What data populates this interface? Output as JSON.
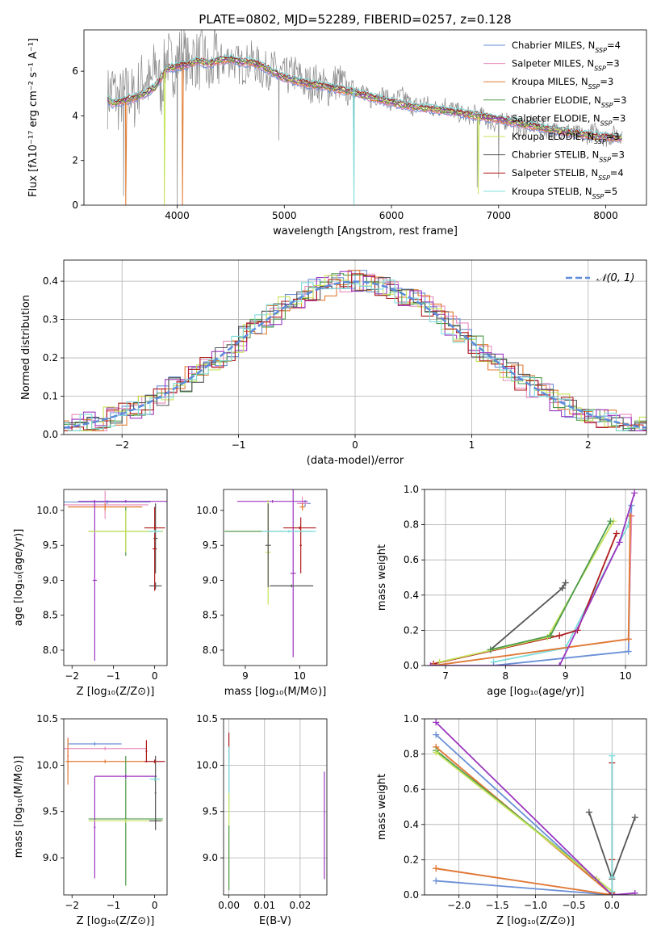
{
  "chart_data": [
    {
      "id": "spectrum",
      "type": "line",
      "title": "PLATE=0802, MJD=52289, FIBERID=0257, z=0.128",
      "xlabel": "wavelength [Angstrom, rest frame]",
      "ylabel": "Flux [fλ10⁻¹⁷ erg cm⁻² s⁻¹ A⁻¹]",
      "xlim": [
        3130,
        8380
      ],
      "ylim": [
        0,
        7.85
      ],
      "xticks": [
        4000,
        5000,
        6000,
        7000,
        8000
      ],
      "yticks": [
        0,
        2,
        4,
        6
      ],
      "grid": false,
      "legend_placement": "upper-right",
      "data_series": {
        "name": "data",
        "color": "#888888",
        "x": [
          3350,
          3400,
          3450,
          3500,
          3550,
          3600,
          3650,
          3700,
          3750,
          3800,
          3850,
          3900,
          3950,
          4000,
          4050,
          4100,
          4150,
          4200,
          4250,
          4300,
          4350,
          4400,
          4500,
          4600,
          4700,
          4800,
          4900,
          5000,
          5100,
          5200,
          5300,
          5400,
          5500,
          5600,
          5700,
          5800,
          5900,
          6000,
          6100,
          6200,
          6300,
          6400,
          6500,
          6600,
          6700,
          6800,
          6900,
          7000,
          7100,
          7200,
          7300,
          7400,
          7500,
          7600,
          7700,
          7800,
          7900,
          8000,
          8100
        ],
        "y": [
          4.8,
          5.3,
          4.6,
          4.9,
          5.1,
          4.7,
          5.4,
          5.8,
          5.2,
          6.4,
          5.1,
          6.8,
          6.1,
          6.5,
          6.9,
          6.2,
          6.7,
          6.4,
          6.8,
          5.6,
          6.6,
          6.4,
          6.6,
          6.2,
          6.5,
          6.0,
          6.1,
          5.7,
          5.9,
          5.4,
          5.5,
          5.2,
          5.6,
          5.1,
          5.3,
          4.7,
          5.0,
          4.6,
          4.9,
          4.4,
          4.6,
          4.3,
          4.5,
          4.2,
          4.0,
          4.1,
          3.8,
          3.6,
          3.9,
          3.4,
          3.6,
          3.5,
          3.3,
          3.4,
          3.2,
          3.1,
          3.3,
          3.0,
          3.2
        ]
      },
      "model_series": [
        {
          "name": "Chabrier MILES, N$_{SSP}$=4",
          "color": "#6a8fd6"
        },
        {
          "name": "Salpeter MILES, N$_{SSP}$=3",
          "color": "#e88cbd"
        },
        {
          "name": "Kroupa MILES, N$_{SSP}$=3",
          "color": "#e07b32"
        },
        {
          "name": "Chabrier ELODIE, N$_{SSP}$=3",
          "color": "#4d9a4d"
        },
        {
          "name": "Salpeter ELODIE, N$_{SSP}$=3",
          "color": "#9b36c0"
        },
        {
          "name": "Kroupa ELODIE, N$_{SSP}$=3",
          "color": "#c6e35a"
        },
        {
          "name": "Chabrier STELIB, N$_{SSP}$=3",
          "color": "#555555"
        },
        {
          "name": "Salpeter STELIB, N$_{SSP}$=4",
          "color": "#b01c1c"
        },
        {
          "name": "Kroupa STELIB, N$_{SSP}$=5",
          "color": "#7fdcdc"
        }
      ],
      "model_x": [
        3350,
        3400,
        3450,
        3500,
        3600,
        3700,
        3800,
        3900,
        4000,
        4100,
        4200,
        4300,
        4400,
        4500,
        4600,
        4700,
        4800,
        4900,
        5000,
        5200,
        5400,
        5600,
        5800,
        6000,
        6200,
        6400,
        6600,
        6800,
        7000,
        7200,
        7400,
        7600,
        7800,
        8000,
        8100
      ],
      "model_y": [
        4.75,
        4.55,
        4.6,
        4.7,
        4.8,
        5.0,
        5.3,
        6.1,
        6.2,
        6.3,
        6.45,
        6.35,
        6.5,
        6.55,
        6.4,
        6.4,
        6.2,
        5.95,
        5.7,
        5.45,
        5.3,
        5.1,
        4.85,
        4.6,
        4.4,
        4.3,
        4.15,
        4.0,
        3.85,
        3.65,
        3.45,
        3.3,
        3.15,
        3.05,
        3.0
      ]
    },
    {
      "id": "residuals",
      "type": "step",
      "xlabel": "(data-model)/error",
      "ylabel": "Normed distribution",
      "xlim": [
        -2.5,
        2.5
      ],
      "ylim": [
        0,
        0.455
      ],
      "xticks": [
        -2,
        -1,
        0,
        1,
        2
      ],
      "yticks": [
        0.0,
        0.1,
        0.2,
        0.3,
        0.4
      ],
      "grid": true,
      "legend_placement": "upper-right",
      "reference": {
        "name": "𝒩(0, 1)",
        "color": "#5b8bd9",
        "mean": 0,
        "sigma": 1
      },
      "bin_width": 0.1
    },
    {
      "id": "age-vs-Z",
      "type": "errorbar",
      "xlabel": "Z [log₁₀(Z/Z⊙)]",
      "ylabel": "age  [log₁₀(age/yr)]",
      "xlim": [
        -2.2,
        0.3
      ],
      "ylim": [
        7.78,
        10.3
      ],
      "xticks": [
        -2,
        -1,
        0
      ],
      "yticks": [
        8.0,
        8.5,
        9.0,
        9.5,
        10.0
      ],
      "grid": false,
      "points": [
        {
          "color": "#6a8fd6",
          "x": -1.15,
          "xerr": 1.05,
          "y": 10.12,
          "yerr": 0.03
        },
        {
          "color": "#e88cbd",
          "x": -1.2,
          "xerr": 1.05,
          "y": 10.08,
          "yerr": 0.2
        },
        {
          "color": "#e07b32",
          "x": -1.2,
          "xerr": 0.9,
          "y": 10.05,
          "yerr": 0.05
        },
        {
          "color": "#4d9a4d",
          "x": -0.7,
          "xerr": 0.9,
          "y": 9.7,
          "yerr": 0.35
        },
        {
          "color": "#9b36c0",
          "x": -0.7,
          "xerr": 1.15,
          "y": 10.13,
          "yerr": 0.02
        },
        {
          "color": "#9b36c0",
          "x": -1.45,
          "xerr": 0.05,
          "y": 9.0,
          "yerr": 1.15
        },
        {
          "color": "#c6e35a",
          "x": -0.7,
          "xerr": 0.9,
          "y": 9.7,
          "yerr": 0.3
        },
        {
          "color": "#555555",
          "x": 0.02,
          "xerr": 0.15,
          "y": 8.92,
          "yerr": 0.05
        },
        {
          "color": "#555555",
          "x": 0.02,
          "xerr": 0.05,
          "y": 9.6,
          "yerr": 0.5
        },
        {
          "color": "#b01c1c",
          "x": 0.0,
          "xerr": 0.25,
          "y": 9.75,
          "yerr": 0.05
        },
        {
          "color": "#b01c1c",
          "x": 0.0,
          "xerr": 0.05,
          "y": 9.45,
          "yerr": 0.6
        },
        {
          "color": "#7fdcdc",
          "x": 0.0,
          "xerr": 0.15,
          "y": 9.7,
          "yerr": 0.02
        }
      ]
    },
    {
      "id": "age-vs-mass",
      "type": "errorbar",
      "xlabel": "mass [log₁₀(M/M⊙)]",
      "ylabel": "",
      "xlim": [
        8.6,
        10.5
      ],
      "ylim": [
        7.78,
        10.3
      ],
      "xticks": [
        9,
        10
      ],
      "yticks": [
        8.0,
        8.5,
        9.0,
        9.5,
        10.0
      ],
      "grid": false,
      "points": [
        {
          "color": "#6a8fd6",
          "x": 10.1,
          "xerr": 0.1,
          "y": 10.1,
          "yerr": 0.05
        },
        {
          "color": "#e88cbd",
          "x": 10.05,
          "xerr": 0.1,
          "y": 10.1,
          "yerr": 0.1
        },
        {
          "color": "#e07b32",
          "x": 10.05,
          "xerr": 0.05,
          "y": 10.05,
          "yerr": 0.05
        },
        {
          "color": "#4d9a4d",
          "x": 9.42,
          "xerr": 0.8,
          "y": 9.7,
          "yerr": 0.4
        },
        {
          "color": "#9b36c0",
          "x": 9.88,
          "xerr": 0.05,
          "y": 9.1,
          "yerr": 1.2
        },
        {
          "color": "#9b36c0",
          "x": 9.5,
          "xerr": 0.65,
          "y": 10.13,
          "yerr": 0.02
        },
        {
          "color": "#c6e35a",
          "x": 9.42,
          "xerr": 0.05,
          "y": 9.4,
          "yerr": 0.75
        },
        {
          "color": "#555555",
          "x": 9.85,
          "xerr": 0.4,
          "y": 8.92,
          "yerr": 0.02
        },
        {
          "color": "#555555",
          "x": 9.42,
          "xerr": 0.05,
          "y": 9.5,
          "yerr": 0.6
        },
        {
          "color": "#b01c1c",
          "x": 10.0,
          "xerr": 0.3,
          "y": 9.75,
          "yerr": 0.02
        },
        {
          "color": "#b01c1c",
          "x": 10.02,
          "xerr": 0.02,
          "y": 9.5,
          "yerr": 0.4
        },
        {
          "color": "#7fdcdc",
          "x": 9.8,
          "xerr": 0.5,
          "y": 9.7,
          "yerr": 0.02
        }
      ]
    },
    {
      "id": "weight-vs-age",
      "type": "line",
      "xlabel": "age  [log₁₀(age/yr)]",
      "ylabel": "mass weight",
      "xlim": [
        6.65,
        10.35
      ],
      "ylim": [
        0,
        1.0
      ],
      "xticks": [
        7,
        8,
        9,
        10
      ],
      "yticks": [
        0.0,
        0.2,
        0.4,
        0.6,
        0.8,
        1.0
      ],
      "grid": true,
      "series": [
        {
          "color": "#7fdcdc",
          "x": [
            7.8,
            9.0,
            10.05,
            10.1
          ],
          "y": [
            0.02,
            0.1,
            0.8,
            0.91
          ]
        },
        {
          "color": "#b01c1c",
          "x": [
            6.8,
            8.9,
            9.2,
            9.85
          ],
          "y": [
            0.01,
            0.17,
            0.2,
            0.75
          ]
        },
        {
          "color": "#555555",
          "x": [
            7.75,
            8.95,
            9.0
          ],
          "y": [
            0.09,
            0.44,
            0.47
          ]
        },
        {
          "color": "#c6e35a",
          "x": [
            6.9,
            8.7,
            9.8
          ],
          "y": [
            0.02,
            0.16,
            0.82
          ]
        },
        {
          "color": "#4d9a4d",
          "x": [
            7.75,
            8.75,
            9.75
          ],
          "y": [
            0.09,
            0.17,
            0.82
          ]
        },
        {
          "color": "#6a8fd6",
          "x": [
            7.8,
            10.05,
            10.1
          ],
          "y": [
            0.0,
            0.08,
            0.91
          ]
        },
        {
          "color": "#e88cbd",
          "x": [
            6.8,
            10.05,
            10.1
          ],
          "y": [
            0.0,
            0.15,
            0.85
          ]
        },
        {
          "color": "#e07b32",
          "x": [
            6.8,
            10.05,
            10.08
          ],
          "y": [
            0.0,
            0.15,
            0.85
          ]
        },
        {
          "color": "#9b36c0",
          "x": [
            6.75,
            8.9,
            9.9,
            10.15
          ],
          "y": [
            0.0,
            0.0,
            0.7,
            0.98
          ]
        }
      ]
    },
    {
      "id": "mass-vs-Z",
      "type": "errorbar",
      "xlabel": "Z [log₁₀(Z/Z⊙)]",
      "ylabel": "mass [log₁₀(M/M⊙)]",
      "xlim": [
        -2.2,
        0.3
      ],
      "ylim": [
        8.6,
        10.5
      ],
      "xticks": [
        -2,
        -1,
        0
      ],
      "yticks": [
        9.0,
        9.5,
        10.0,
        10.5
      ],
      "grid": false,
      "points": [
        {
          "color": "#6a8fd6",
          "x": -1.45,
          "xerr": 0.65,
          "y": 10.23,
          "yerr": 0.02
        },
        {
          "color": "#e88cbd",
          "x": -1.2,
          "xerr": 1.0,
          "y": 10.18,
          "yerr": 0.02
        },
        {
          "color": "#e88cbd",
          "x": -2.1,
          "xerr": 0.02,
          "y": 10.1,
          "yerr": 0.2
        },
        {
          "color": "#e07b32",
          "x": -1.2,
          "xerr": 0.95,
          "y": 10.04,
          "yerr": 0.02
        },
        {
          "color": "#e07b32",
          "x": -2.1,
          "xerr": 0.02,
          "y": 10.04,
          "yerr": 0.25
        },
        {
          "color": "#4d9a4d",
          "x": -0.7,
          "xerr": 0.9,
          "y": 9.42,
          "yerr": 0.02
        },
        {
          "color": "#4d9a4d",
          "x": -0.7,
          "xerr": 0.02,
          "y": 9.4,
          "yerr": 0.7
        },
        {
          "color": "#9b36c0",
          "x": -0.7,
          "xerr": 0.75,
          "y": 9.88,
          "yerr": 0.02
        },
        {
          "color": "#9b36c0",
          "x": -1.45,
          "xerr": 0.02,
          "y": 9.33,
          "yerr": 0.55
        },
        {
          "color": "#c6e35a",
          "x": -0.7,
          "xerr": 0.9,
          "y": 9.4,
          "yerr": 0.02
        },
        {
          "color": "#555555",
          "x": 0.02,
          "xerr": 0.15,
          "y": 9.4,
          "yerr": 0.02
        },
        {
          "color": "#555555",
          "x": 0.02,
          "xerr": 0.02,
          "y": 9.7,
          "yerr": 0.4
        },
        {
          "color": "#b01c1c",
          "x": 0.0,
          "xerr": 0.25,
          "y": 10.04,
          "yerr": 0.02
        },
        {
          "color": "#b01c1c",
          "x": -0.2,
          "xerr": 0.02,
          "y": 10.15,
          "yerr": 0.12
        },
        {
          "color": "#7fdcdc",
          "x": 0.0,
          "xerr": 0.12,
          "y": 9.85,
          "yerr": 0.02
        }
      ]
    },
    {
      "id": "mass-vs-ebv",
      "type": "errorbar",
      "xlabel": "E(B-V)",
      "ylabel": "",
      "xlim": [
        -0.0015,
        0.0275
      ],
      "ylim": [
        8.6,
        10.5
      ],
      "xticks": [
        0.0,
        0.01,
        0.02
      ],
      "yticks": [
        9.0,
        9.5,
        10.0,
        10.5
      ],
      "grid": true,
      "points": [
        {
          "color": "#b01c1c",
          "x": 0.0,
          "xerr": 0.0,
          "y": 10.2,
          "yerr": 0.15
        },
        {
          "color": "#6a8fd6",
          "x": 0.0,
          "xerr": 0.0,
          "y": 9.9,
          "yerr": 0.3
        },
        {
          "color": "#7fdcdc",
          "x": 0.0,
          "xerr": 0.0,
          "y": 9.8,
          "yerr": 0.4
        },
        {
          "color": "#c6e35a",
          "x": 0.0,
          "xerr": 0.0,
          "y": 9.2,
          "yerr": 0.5
        },
        {
          "color": "#4d9a4d",
          "x": 0.0,
          "xerr": 0.0,
          "y": 9.0,
          "yerr": 0.35
        },
        {
          "color": "#9b36c0",
          "x": 0.0268,
          "xerr": 0.0,
          "y": 9.35,
          "yerr": 0.58
        }
      ]
    },
    {
      "id": "weight-vs-Z",
      "type": "line",
      "xlabel": "Z [log₁₀(Z/Z⊙)]",
      "ylabel": "mass weight",
      "xlim": [
        -2.45,
        0.45
      ],
      "ylim": [
        0,
        1.0
      ],
      "xticks": [
        -2.0,
        -1.5,
        -1.0,
        -0.5,
        0.0
      ],
      "yticks": [
        0.0,
        0.2,
        0.4,
        0.6,
        0.8,
        1.0
      ],
      "grid": true,
      "series": [
        {
          "color": "#6a8fd6",
          "x": [
            -2.3,
            0.0,
            -2.3
          ],
          "y": [
            0.08,
            0.0,
            0.91
          ]
        },
        {
          "color": "#e88cbd",
          "x": [
            -2.3,
            0.0,
            -2.3
          ],
          "y": [
            0.15,
            0.0,
            0.84
          ]
        },
        {
          "color": "#e07b32",
          "x": [
            -2.3,
            0.0,
            -2.3
          ],
          "y": [
            0.15,
            0.0,
            0.84
          ]
        },
        {
          "color": "#4d9a4d",
          "x": [
            -2.3,
            0.0,
            -0.2
          ],
          "y": [
            0.82,
            0.02,
            0.09
          ]
        },
        {
          "color": "#c6e35a",
          "x": [
            -2.3,
            0.0,
            -0.2
          ],
          "y": [
            0.81,
            0.02,
            0.09
          ]
        },
        {
          "color": "#9b36c0",
          "x": [
            -2.3,
            0.0,
            0.3
          ],
          "y": [
            0.98,
            0.0,
            0.01
          ]
        },
        {
          "color": "#555555",
          "x": [
            -0.3,
            0.0,
            0.3
          ],
          "y": [
            0.47,
            0.09,
            0.44
          ]
        },
        {
          "color": "#b01c1c",
          "x": [
            0.0,
            0.0,
            0.0
          ],
          "y": [
            0.01,
            0.2,
            0.75
          ]
        },
        {
          "color": "#7fdcdc",
          "x": [
            0.0,
            0.0,
            0.0
          ],
          "y": [
            0.02,
            0.1,
            0.79
          ]
        }
      ]
    }
  ]
}
